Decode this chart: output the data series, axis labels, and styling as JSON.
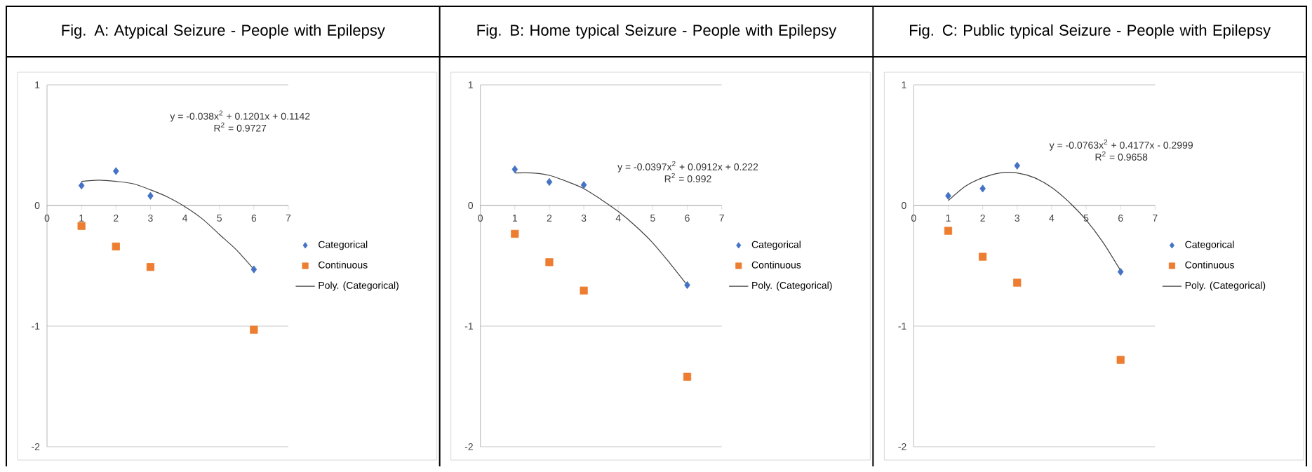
{
  "chart_data": [
    {
      "type": "scatter",
      "title": "Fig. A:  Atypical Seizure - People with Epilepsy",
      "xlim": [
        0,
        7
      ],
      "xticks": [
        0,
        1,
        2,
        3,
        4,
        5,
        6,
        7
      ],
      "ylim": [
        -2,
        1
      ],
      "yticks": [
        -2,
        -1,
        0,
        1
      ],
      "grid": "y",
      "legend": "right",
      "annotations": [
        "y = -0.038x$^{2}$ + 0.1201x + 0.1142",
        "R$^{2}$ = 0.9727"
      ],
      "series": [
        {
          "name": "Categorical",
          "color": "#4472c4",
          "marker": "diamond",
          "x": [
            1,
            2,
            3,
            6
          ],
          "values": [
            0.165,
            0.285,
            0.08,
            -0.53
          ]
        },
        {
          "name": "Continuous",
          "color": "#ed7d31",
          "marker": "square",
          "x": [
            1,
            2,
            3,
            6
          ],
          "values": [
            -0.17,
            -0.34,
            -0.51,
            -1.03
          ]
        },
        {
          "name": "Poly. (Categorical)",
          "type": "line",
          "color": "#404040",
          "marker": "none",
          "x": [
            1,
            1.5,
            2,
            2.5,
            3,
            3.5,
            4,
            4.5,
            5,
            5.5,
            6
          ],
          "values": [
            0.2,
            0.21,
            0.2,
            0.18,
            0.13,
            0.07,
            -0.01,
            -0.11,
            -0.24,
            -0.37,
            -0.53
          ]
        }
      ]
    },
    {
      "type": "scatter",
      "title": "Fig. B:  Home typical Seizure - People with Epilepsy",
      "xlim": [
        0,
        7
      ],
      "xticks": [
        0,
        1,
        2,
        3,
        4,
        5,
        6,
        7
      ],
      "ylim": [
        -2,
        1
      ],
      "yticks": [
        -2,
        -1,
        0,
        1
      ],
      "grid": "y",
      "legend": "right",
      "annotations": [
        "y = -0.0397x$^{2}$ + 0.0912x + 0.222",
        "R$^{2}$ = 0.992"
      ],
      "series": [
        {
          "name": "Categorical",
          "color": "#4472c4",
          "marker": "diamond",
          "x": [
            1,
            2,
            3,
            6
          ],
          "values": [
            0.3,
            0.195,
            0.17,
            -0.66
          ]
        },
        {
          "name": "Continuous",
          "color": "#ed7d31",
          "marker": "square",
          "x": [
            1,
            2,
            3,
            6
          ],
          "values": [
            -0.235,
            -0.47,
            -0.705,
            -1.42
          ]
        },
        {
          "name": "Poly. (Categorical)",
          "type": "line",
          "color": "#404040",
          "marker": "none",
          "x": [
            1,
            1.5,
            2,
            2.5,
            3,
            3.5,
            4,
            4.5,
            5,
            5.5,
            6
          ],
          "values": [
            0.27,
            0.27,
            0.25,
            0.2,
            0.14,
            0.05,
            -0.05,
            -0.17,
            -0.31,
            -0.48,
            -0.66
          ]
        }
      ]
    },
    {
      "type": "scatter",
      "title": "Fig. C:  Public typical Seizure - People with Epilepsy",
      "xlim": [
        0,
        7
      ],
      "xticks": [
        0,
        1,
        2,
        3,
        4,
        5,
        6,
        7
      ],
      "ylim": [
        -2,
        1
      ],
      "yticks": [
        -2,
        -1,
        0,
        1
      ],
      "grid": "y",
      "legend": "right",
      "annotations": [
        "y = -0.0763x$^{2}$ + 0.4177x - 0.2999",
        "R$^{2}$ = 0.9658"
      ],
      "series": [
        {
          "name": "Categorical",
          "color": "#4472c4",
          "marker": "diamond",
          "x": [
            1,
            2,
            3,
            6
          ],
          "values": [
            0.08,
            0.14,
            0.33,
            -0.55
          ]
        },
        {
          "name": "Continuous",
          "color": "#ed7d31",
          "marker": "square",
          "x": [
            1,
            2,
            3,
            6
          ],
          "values": [
            -0.21,
            -0.425,
            -0.64,
            -1.28
          ]
        },
        {
          "name": "Poly. (Categorical)",
          "type": "line",
          "color": "#404040",
          "marker": "none",
          "x": [
            1,
            1.5,
            2,
            2.5,
            3,
            3.5,
            4,
            4.5,
            5,
            5.5,
            6
          ],
          "values": [
            0.04,
            0.16,
            0.23,
            0.27,
            0.27,
            0.23,
            0.15,
            0.03,
            -0.12,
            -0.31,
            -0.54
          ]
        }
      ]
    }
  ]
}
